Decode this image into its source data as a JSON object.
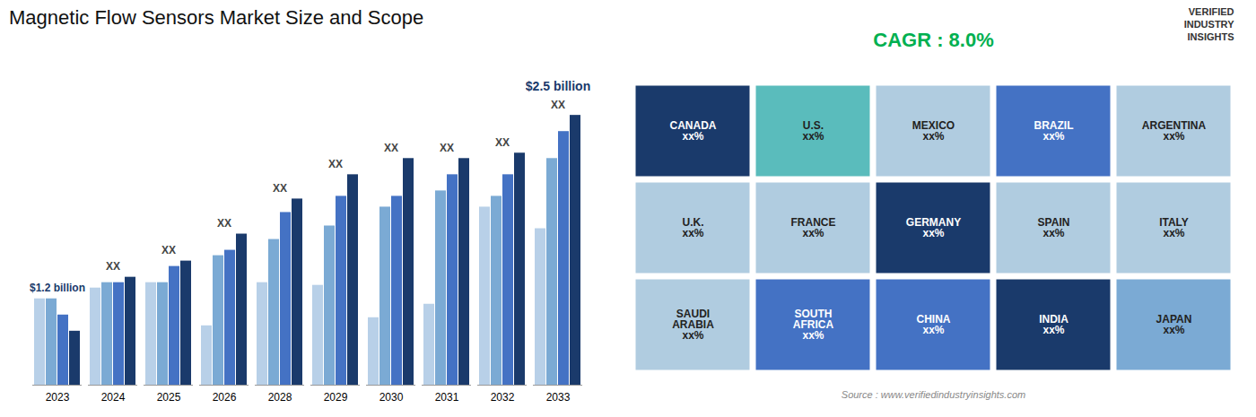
{
  "chart_data": [
    {
      "type": "bar",
      "title": "Magnetic Flow Sensors Market Size and Scope",
      "categories": [
        "2023",
        "2024",
        "2025",
        "2026",
        "2028",
        "2029",
        "2030",
        "2031",
        "2032",
        "2033"
      ],
      "series": [
        {
          "color": "#b8d0e8",
          "values": [
            0.32,
            0.36,
            0.38,
            0.22,
            0.38,
            0.37,
            0.25,
            0.3,
            0.66,
            0.58
          ]
        },
        {
          "color": "#7baad4",
          "values": [
            0.32,
            0.38,
            0.38,
            0.48,
            0.54,
            0.59,
            0.66,
            0.72,
            0.7,
            0.84
          ]
        },
        {
          "color": "#4472c4",
          "values": [
            0.26,
            0.38,
            0.44,
            0.5,
            0.64,
            0.7,
            0.7,
            0.78,
            0.78,
            0.94
          ]
        },
        {
          "color": "#1a3a6b",
          "values": [
            0.2,
            0.4,
            0.46,
            0.56,
            0.69,
            0.78,
            0.84,
            0.84,
            0.86,
            1.0
          ]
        }
      ],
      "ylim": [
        0,
        1.18
      ],
      "tick_labels": "x",
      "grid": false,
      "annotations": [
        {
          "text": "$1.2 billion",
          "category": "2023",
          "color": "#1a3a6b"
        },
        {
          "text": "XX",
          "category": "2024",
          "color": "#444444"
        },
        {
          "text": "XX",
          "category": "2025",
          "color": "#444444"
        },
        {
          "text": "XX",
          "category": "2026",
          "color": "#444444"
        },
        {
          "text": "XX",
          "category": "2028",
          "color": "#444444"
        },
        {
          "text": "XX",
          "category": "2029",
          "color": "#444444"
        },
        {
          "text": "XX",
          "category": "2030",
          "color": "#444444"
        },
        {
          "text": "XX",
          "category": "2031",
          "color": "#444444"
        },
        {
          "text": "XX",
          "category": "2032",
          "color": "#444444"
        },
        {
          "text": "XX",
          "category": "2033",
          "color": "#444444"
        },
        {
          "text": "$2.5 billion",
          "category": "2033",
          "color": "#1a3a6b"
        }
      ]
    },
    {
      "type": "map",
      "categories": [
        "CANADA\nxx%",
        "U.S.\nxx%",
        "MEXICO\nxx%",
        "BRAZIL\nxx%",
        "ARGENTINA\nxx%",
        "U.K.\nxx%",
        "FRANCE\nxx%",
        "GERMANY\nxx%",
        "SPAIN\nxx%",
        "ITALY\nxx%",
        "SAUDI\nARABIA\nxx%",
        "SOUTH\nAFRICA\nxx%",
        "CHINA\nxx%",
        "INDIA\nxx%",
        "JAPAN\nxx%"
      ],
      "colors": [
        "#1a3a6b",
        "#5abcbc",
        "#b0cce0",
        "#4472c4",
        "#b0cce0",
        "#b0cce0",
        "#b0cce0",
        "#1a3a6b",
        "#b0cce0",
        "#b0cce0",
        "#b0cce0",
        "#4472c4",
        "#4472c4",
        "#1a3a6b",
        "#7baad4"
      ],
      "annotations": [
        {
          "text": "CAGR : 8.0%",
          "color": "#00b050"
        },
        {
          "text": "VERIFIED\nINDUSTRY\nINSIGHTS",
          "color": "#333333"
        },
        {
          "text": "Source : www.verifiedindustryinsights.com",
          "color": "#888888"
        }
      ]
    }
  ]
}
